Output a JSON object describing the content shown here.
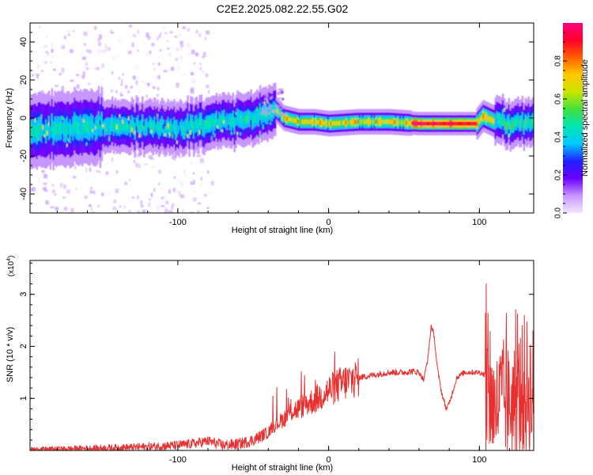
{
  "title": "C2E2.2025.082.22.55.G02",
  "chart_data": [
    {
      "type": "heatmap",
      "xlabel": "Height of straight line (km)",
      "ylabel": "Frequency (Hz)",
      "xlim": [
        -198,
        136
      ],
      "ylim": [
        -50,
        50
      ],
      "xticks": [
        "-100",
        "0",
        "100"
      ],
      "xtick_values": [
        -100,
        0,
        100
      ],
      "yticks": [
        "-40",
        "-20",
        "0",
        "20",
        "40"
      ],
      "ytick_values": [
        -40,
        -20,
        0,
        20,
        40
      ],
      "ridge_frequency": {
        "x": [
          -195,
          -180,
          -160,
          -140,
          -120,
          -100,
          -80,
          -60,
          -45,
          -35,
          -30,
          -20,
          -10,
          0,
          20,
          40,
          60,
          80,
          98,
          102,
          110,
          120,
          135
        ],
        "y": [
          -7,
          -6,
          -5,
          -4,
          -5,
          -5,
          -3,
          -1,
          1,
          4,
          0,
          -2,
          -2,
          -3,
          -2,
          -2,
          -3,
          -3,
          -3,
          1,
          -2,
          -3,
          -2
        ]
      },
      "colorbar": {
        "label": "Normalized spectral amplitude",
        "range": [
          0.0,
          1.0
        ],
        "ticks": [
          "0.0",
          "0.2",
          "0.4",
          "0.6",
          "0.8"
        ],
        "tick_values": [
          0.0,
          0.2,
          0.4,
          0.6,
          0.8
        ],
        "colormap": [
          "#f2e6ff",
          "#c896ff",
          "#6a00ff",
          "#2020ff",
          "#00c8ff",
          "#00e6b4",
          "#40e040",
          "#c8e600",
          "#ffc800",
          "#ff6000",
          "#ff0028",
          "#ff0080"
        ]
      }
    },
    {
      "type": "line",
      "xlabel": "Height of straight line (km)",
      "ylabel": "SNR (10 * v/v)",
      "yscale_label": "(x10",
      "yscale_exp": "4",
      "yscale_close": ")",
      "xlim": [
        -198,
        136
      ],
      "ylim": [
        0,
        3.65
      ],
      "ylim_units": "x10^4",
      "xticks": [
        "-100",
        "0",
        "100"
      ],
      "xtick_values": [
        -100,
        0,
        100
      ],
      "yticks": [
        "1",
        "2",
        "3"
      ],
      "ytick_values": [
        1,
        2,
        3
      ],
      "color": "#e83030",
      "series": [
        {
          "x": [
            -198,
            -180,
            -160,
            -140,
            -120,
            -100,
            -90,
            -80,
            -70,
            -60,
            -50,
            -40,
            -35,
            -30,
            -25,
            -20,
            -15,
            -10,
            -5,
            0,
            10,
            20,
            30,
            40,
            50,
            55,
            60,
            63,
            66,
            68,
            70,
            72,
            75,
            78,
            80,
            85,
            90,
            95,
            100,
            104,
            106,
            108,
            110,
            115,
            120,
            125,
            130,
            135
          ],
          "y": [
            0.02,
            0.03,
            0.04,
            0.05,
            0.07,
            0.1,
            0.13,
            0.18,
            0.1,
            0.12,
            0.2,
            0.35,
            0.5,
            0.6,
            0.75,
            0.8,
            0.9,
            0.95,
            1.05,
            1.15,
            1.3,
            1.4,
            1.45,
            1.5,
            1.5,
            1.52,
            1.5,
            1.35,
            1.8,
            2.4,
            2.2,
            1.6,
            1.1,
            0.8,
            0.9,
            1.4,
            1.5,
            1.5,
            1.5,
            1.45,
            1.5,
            1.0,
            0.8,
            1.0,
            0.9,
            1.0,
            1.2,
            1.1
          ]
        }
      ]
    }
  ]
}
